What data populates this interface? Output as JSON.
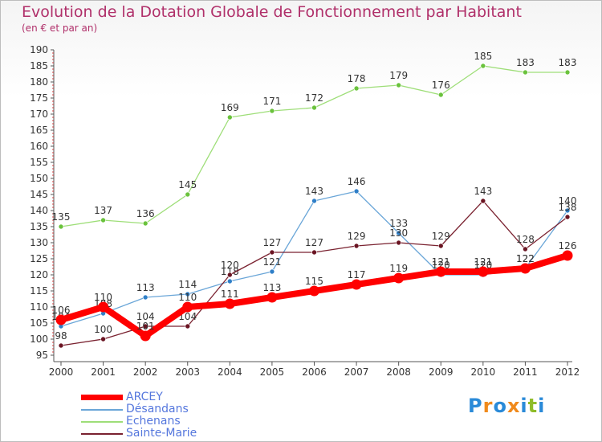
{
  "title": "Evolution de la Dotation Globale de Fonctionnement par Habitant",
  "subtitle": "(en € et par an)",
  "logo": {
    "text": "Proxiti",
    "letters": [
      {
        "ch": "P",
        "color": "#2a8ad8"
      },
      {
        "ch": "r",
        "color": "#f08a1c"
      },
      {
        "ch": "o",
        "color": "#2a8ad8"
      },
      {
        "ch": "x",
        "color": "#f08a1c"
      },
      {
        "ch": "i",
        "color": "#2a8ad8"
      },
      {
        "ch": "t",
        "color": "#8fbc2a"
      },
      {
        "ch": "i",
        "color": "#2a8ad8"
      }
    ]
  },
  "legend": {
    "items": [
      {
        "label": "ARCEY",
        "color": "#ff0000"
      },
      {
        "label": "Désandans",
        "color": "#6aa6d8"
      },
      {
        "label": "Echenans",
        "color": "#9ede78"
      },
      {
        "label": "Sainte-Marie",
        "color": "#7a2230"
      }
    ]
  },
  "chart_data": {
    "type": "line",
    "title": "Evolution de la Dotation Globale de Fonctionnement par Habitant",
    "subtitle": "(en € et par an)",
    "xlabel": "",
    "ylabel": "",
    "x": [
      "2000",
      "2001",
      "2002",
      "2003",
      "2004",
      "2005",
      "2006",
      "2007",
      "2008",
      "2009",
      "2010",
      "2011",
      "2012"
    ],
    "ylim": [
      95,
      190
    ],
    "yticks": [
      95,
      100,
      105,
      110,
      115,
      120,
      125,
      130,
      135,
      140,
      145,
      150,
      155,
      160,
      165,
      170,
      175,
      180,
      185,
      190
    ],
    "grid": false,
    "series": [
      {
        "name": "Echenans",
        "color": "#9ede78",
        "marker_color": "#6ac23c",
        "values": [
          135,
          137,
          136,
          145,
          169,
          171,
          172,
          178,
          179,
          176,
          185,
          183,
          183
        ],
        "labels": [
          "135",
          "137",
          "136",
          "145",
          "169",
          "171",
          "172",
          "178",
          "179",
          "176",
          "185",
          "183",
          "183"
        ]
      },
      {
        "name": "Désandans",
        "color": "#6aa6d8",
        "marker_color": "#2f7fc8",
        "values": [
          104,
          108,
          113,
          114,
          118,
          121,
          143,
          146,
          133,
          120,
          120,
          122,
          140
        ],
        "labels": [
          "104",
          "108",
          "113",
          "114",
          "118",
          "121",
          "143",
          "146",
          "133",
          "120",
          "120",
          "122",
          "140"
        ]
      },
      {
        "name": "Sainte-Marie",
        "color": "#7a2230",
        "marker_color": "#6a1422",
        "values": [
          98,
          100,
          104,
          104,
          120,
          127,
          127,
          129,
          130,
          129,
          143,
          128,
          138
        ],
        "labels": [
          "98",
          "100",
          "104",
          "104",
          "120",
          "127",
          "127",
          "129",
          "130",
          "129",
          "143",
          "128",
          "138"
        ]
      },
      {
        "name": "ARCEY",
        "color": "#ff0000",
        "marker_color": "#ff0000",
        "values": [
          106,
          110,
          101,
          110,
          111,
          113,
          115,
          117,
          119,
          121,
          121,
          122,
          126
        ],
        "labels": [
          "106",
          "110",
          "101",
          "110",
          "111",
          "113",
          "115",
          "117",
          "119",
          "121",
          "121",
          "122",
          "126"
        ]
      }
    ]
  }
}
